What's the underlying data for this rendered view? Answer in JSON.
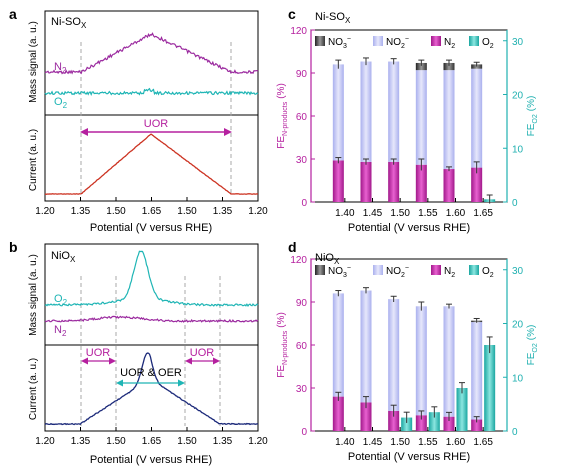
{
  "panels": {
    "a": {
      "letter": "a",
      "top_title": "Ni-SO",
      "top_title_sub": "X",
      "ms_ylabel": "Mass signal (a. u.)",
      "cur_ylabel": "Current (a. u.)",
      "trace1_label": "N",
      "trace1_sub": "2",
      "trace2_label": "O",
      "trace2_sub": "2",
      "region_label": "UOR",
      "xticks": [
        "1.20",
        "1.35",
        "1.50",
        "1.65",
        "1.50",
        "1.35",
        "1.20"
      ],
      "xlabel": "Potential (V versus RHE)"
    },
    "b": {
      "letter": "b",
      "top_title": "NiO",
      "top_title_sub": "X",
      "ms_ylabel": "Mass signal (a. u.)",
      "cur_ylabel": "Current (a. u.)",
      "trace1_label": "O",
      "trace1_sub": "2",
      "trace2_label": "N",
      "trace2_sub": "2",
      "region_left": "UOR",
      "region_right": "UOR",
      "region_mid": "UOR & OER",
      "xticks": [
        "1.20",
        "1.35",
        "1.50",
        "1.65",
        "1.50",
        "1.35",
        "1.20"
      ],
      "xlabel": "Potential (V versus RHE)"
    },
    "c": {
      "letter": "c",
      "title": "Ni-SO",
      "title_sub": "X"
    },
    "d": {
      "letter": "d",
      "title": "NiO",
      "title_sub": "X"
    }
  },
  "colors": {
    "n2": "#9b2a9f",
    "o2": "#1fb5b5",
    "current_a": "#cc3322",
    "current_b": "#1c2a7a",
    "no3": "#555555",
    "no2": "#c3c6f2",
    "n2bar": "#cc22aa",
    "o2bar": "#3cc6c0",
    "left_axis": "#b5209f",
    "right_axis": "#1fb0b0",
    "dash": "#aaaaaa"
  },
  "chart_data": [
    {
      "panel": "c",
      "type": "bar",
      "categories": [
        "1.40",
        "1.45",
        "1.50",
        "1.55",
        "1.60",
        "1.65"
      ],
      "xlabel": "Potential (V versus RHE)",
      "ylabel_left": "FE",
      "ylabel_left_sub": "N-products",
      "ylabel_left_unit": "(%)",
      "ylabel_right": "FE",
      "ylabel_right_sub": "O2",
      "ylabel_right_unit": "(%)",
      "ylim_left": [
        0,
        120
      ],
      "yticks_left": [
        "0",
        "30",
        "60",
        "90",
        "120"
      ],
      "ylim_right": [
        0,
        32
      ],
      "yticks_right": [
        "0",
        "10",
        "20",
        "30"
      ],
      "legend": [
        {
          "label": "NO",
          "sub": "3",
          "sup": "−",
          "color": "#555555"
        },
        {
          "label": "NO",
          "sub": "2",
          "sup": "−",
          "color": "#c3c6f2"
        },
        {
          "label": "N",
          "sub": "2",
          "sup": "",
          "color": "#cc22aa"
        },
        {
          "label": "O",
          "sub": "2",
          "sup": "",
          "color": "#3cc6c0"
        }
      ],
      "series": [
        {
          "name": "N2",
          "axis": "left",
          "values": [
            29,
            28,
            28,
            26,
            23,
            24
          ],
          "errors": [
            2,
            2,
            2,
            4,
            1.5,
            4
          ]
        },
        {
          "name": "NO2-",
          "axis": "left",
          "stack_base": "N2",
          "values": [
            67,
            70,
            70,
            66,
            69,
            69
          ],
          "errors": [
            3,
            2.5,
            2,
            2,
            2,
            1.5
          ]
        },
        {
          "name": "NO3-",
          "axis": "left",
          "stack_base": "N2+NO2-",
          "values": [
            0,
            0,
            0,
            5,
            5,
            3
          ]
        },
        {
          "name": "O2",
          "axis": "right",
          "values": [
            0,
            0,
            0,
            0,
            0,
            0.5
          ],
          "errors": [
            0,
            0,
            0,
            0,
            0,
            0.8
          ]
        }
      ]
    },
    {
      "panel": "d",
      "type": "bar",
      "categories": [
        "1.40",
        "1.45",
        "1.50",
        "1.55",
        "1.60",
        "1.65"
      ],
      "xlabel": "Potential (V versus RHE)",
      "ylabel_left": "FE",
      "ylabel_left_sub": "N-products",
      "ylabel_left_unit": "(%)",
      "ylabel_right": "FE",
      "ylabel_right_sub": "O2",
      "ylabel_right_unit": "(%)",
      "ylim_left": [
        0,
        120
      ],
      "yticks_left": [
        "0",
        "30",
        "60",
        "90",
        "120"
      ],
      "ylim_right": [
        0,
        32
      ],
      "yticks_right": [
        "0",
        "10",
        "20",
        "30"
      ],
      "legend": [
        {
          "label": "NO",
          "sub": "3",
          "sup": "−",
          "color": "#555555"
        },
        {
          "label": "NO",
          "sub": "2",
          "sup": "−",
          "color": "#c3c6f2"
        },
        {
          "label": "N",
          "sub": "2",
          "sup": "",
          "color": "#cc22aa"
        },
        {
          "label": "O",
          "sub": "2",
          "sup": "",
          "color": "#3cc6c0"
        }
      ],
      "series": [
        {
          "name": "N2",
          "axis": "left",
          "values": [
            24,
            20,
            14,
            11,
            10,
            8
          ],
          "errors": [
            3,
            4,
            4,
            3,
            3,
            2
          ]
        },
        {
          "name": "NO2-",
          "axis": "left",
          "stack_base": "N2",
          "values": [
            72,
            78,
            78,
            76,
            77,
            68
          ],
          "errors": [
            2,
            2,
            2,
            3,
            1.5,
            1.5
          ]
        },
        {
          "name": "NO3-",
          "axis": "left",
          "stack_base": "N2+NO2-",
          "values": [
            0,
            0,
            0,
            0,
            0,
            1
          ]
        },
        {
          "name": "O2",
          "axis": "right",
          "values": [
            0,
            0,
            2.5,
            3.5,
            8,
            16
          ],
          "errors": [
            0,
            0,
            1,
            1,
            1,
            1.5
          ]
        }
      ]
    }
  ]
}
